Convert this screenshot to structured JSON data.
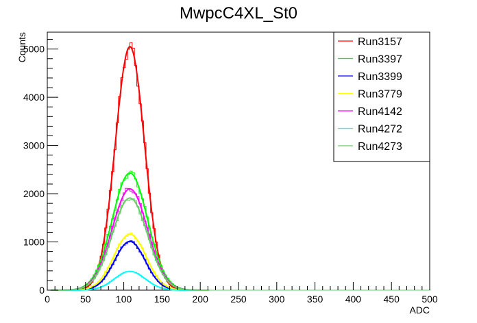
{
  "chart_data": {
    "type": "line",
    "title": "MwpcC4XL_St0",
    "xlabel": "ADC",
    "ylabel": "Counts",
    "xlim": [
      0,
      500
    ],
    "ylim": [
      0,
      5350
    ],
    "x_ticks": [
      0,
      50,
      100,
      150,
      200,
      250,
      300,
      350,
      400,
      450,
      500
    ],
    "y_ticks": [
      0,
      1000,
      2000,
      3000,
      4000,
      5000
    ],
    "grid": false,
    "legend_position": "top-right",
    "series": [
      {
        "name": "Run3157",
        "color": "#ff0000",
        "shape": "gaussian",
        "peak": 5050,
        "mean": 108,
        "sigma": 19
      },
      {
        "name": "Run3397",
        "color": "#00ff00",
        "shape": "gaussian",
        "peak": 2430,
        "mean": 108,
        "sigma": 23
      },
      {
        "name": "Run3399",
        "color": "#0000ff",
        "shape": "gaussian",
        "peak": 1010,
        "mean": 108,
        "sigma": 20
      },
      {
        "name": "Run3779",
        "color": "#ffff00",
        "shape": "gaussian",
        "peak": 1160,
        "mean": 108,
        "sigma": 21
      },
      {
        "name": "Run4142",
        "color": "#ff00ff",
        "shape": "gaussian",
        "peak": 2100,
        "mean": 108,
        "sigma": 23
      },
      {
        "name": "Run4272",
        "color": "#00ffff",
        "shape": "gaussian",
        "peak": 390,
        "mean": 108,
        "sigma": 20
      },
      {
        "name": "Run4273",
        "color": "#66cc66",
        "shape": "gaussian",
        "peak": 1910,
        "mean": 108,
        "sigma": 23
      }
    ]
  }
}
